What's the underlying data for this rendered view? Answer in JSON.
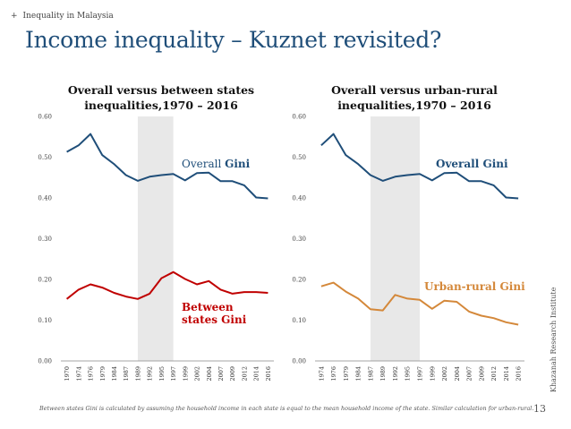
{
  "header": {
    "kicker_symbol": "+",
    "kicker": "Inequality in Malaysia",
    "title": "Income inequality – Kuznet revisited?"
  },
  "footer": {
    "note": "Between states Gini is calculated by assuming the household income in each state is equal to the mean household income of the state. Similar calculation for urban-rural.",
    "page_number": "13",
    "sidebar_text": "Khazanah Research Institute"
  },
  "colors": {
    "overall": "#1f4e79",
    "between": "#c00000",
    "urban_rural": "#d4883a",
    "shade": "#e8e8e8"
  },
  "chart_data": [
    {
      "type": "line",
      "title": "Overall versus between states inequalities,1970 – 2016",
      "x": [
        "1970",
        "1974",
        "1976",
        "1979",
        "1984",
        "1987",
        "1989",
        "1992",
        "1995",
        "1997",
        "1999",
        "2002",
        "2004",
        "2007",
        "2009",
        "2012",
        "2014",
        "2016"
      ],
      "ylim": [
        0,
        0.6
      ],
      "yticks": [
        "0.00",
        "0.10",
        "0.20",
        "0.30",
        "0.40",
        "0.50",
        "0.60"
      ],
      "shaded_range": [
        "1989",
        "1997"
      ],
      "series": [
        {
          "name": "Overall Gini",
          "label_prefix": "Overall ",
          "label_bold": "Gini",
          "values": [
            0.513,
            0.529,
            0.557,
            0.505,
            0.483,
            0.456,
            0.442,
            0.452,
            0.456,
            0.459,
            0.443,
            0.461,
            0.462,
            0.441,
            0.441,
            0.431,
            0.401,
            0.399
          ]
        },
        {
          "name": "Between states Gini",
          "label_line1": "Between",
          "label_line2": "states Gini",
          "values": [
            0.152,
            0.175,
            0.188,
            0.18,
            0.167,
            0.158,
            0.152,
            0.165,
            0.203,
            0.218,
            0.201,
            0.188,
            0.196,
            0.175,
            0.165,
            0.169,
            0.169,
            0.167
          ]
        }
      ]
    },
    {
      "type": "line",
      "title": "Overall versus urban-rural inequalities,1970 – 2016",
      "x": [
        "1974",
        "1976",
        "1979",
        "1984",
        "1987",
        "1989",
        "1992",
        "1995",
        "1997",
        "1999",
        "2002",
        "2004",
        "2007",
        "2009",
        "2012",
        "2014",
        "2016"
      ],
      "ylim": [
        0,
        0.6
      ],
      "yticks": [
        "0.00",
        "0.10",
        "0.20",
        "0.30",
        "0.40",
        "0.50",
        "0.60"
      ],
      "shaded_range": [
        "1987",
        "1997"
      ],
      "series": [
        {
          "name": "Overall Gini",
          "values": [
            0.529,
            0.557,
            0.505,
            0.483,
            0.456,
            0.442,
            0.452,
            0.456,
            0.459,
            0.443,
            0.461,
            0.462,
            0.441,
            0.441,
            0.431,
            0.401,
            0.399
          ]
        },
        {
          "name": "Urban-rural Gini",
          "values": [
            0.183,
            0.192,
            0.17,
            0.153,
            0.127,
            0.124,
            0.162,
            0.153,
            0.15,
            0.128,
            0.148,
            0.145,
            0.121,
            0.111,
            0.105,
            0.095,
            0.089
          ]
        }
      ]
    }
  ]
}
